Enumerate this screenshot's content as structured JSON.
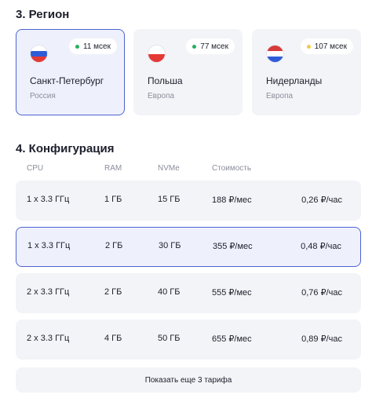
{
  "region": {
    "title": "3. Регион",
    "items": [
      {
        "city": "Санкт-Петербург",
        "area": "Россия",
        "ping": "11 мсек",
        "ping_color": "#27ae60",
        "flag": [
          "#ffffff",
          "#2f5cd6",
          "#e53935"
        ],
        "selected": true
      },
      {
        "city": "Польша",
        "area": "Европа",
        "ping": "77 мсек",
        "ping_color": "#27ae60",
        "flag": [
          "#ffffff",
          "#e53935"
        ],
        "selected": false
      },
      {
        "city": "Нидерланды",
        "area": "Европа",
        "ping": "107 мсек",
        "ping_color": "#f2c94c",
        "flag": [
          "#d63a3a",
          "#ffffff",
          "#2f5cd6"
        ],
        "selected": false
      }
    ]
  },
  "config": {
    "title": "4. Конфигурация",
    "headers": {
      "cpu": "CPU",
      "ram": "RAM",
      "nvme": "NVMe",
      "cost": "Стоимость"
    },
    "rows": [
      {
        "cpu": "1 x 3.3 ГГц",
        "ram": "1 ГБ",
        "nvme": "15 ГБ",
        "cost": "188 ₽/мес",
        "hour": "0,26 ₽/час",
        "selected": false
      },
      {
        "cpu": "1 x 3.3 ГГц",
        "ram": "2 ГБ",
        "nvme": "30 ГБ",
        "cost": "355 ₽/мес",
        "hour": "0,48 ₽/час",
        "selected": true
      },
      {
        "cpu": "2 x 3.3 ГГц",
        "ram": "2 ГБ",
        "nvme": "40 ГБ",
        "cost": "555 ₽/мес",
        "hour": "0,76 ₽/час",
        "selected": false
      },
      {
        "cpu": "2 x 3.3 ГГц",
        "ram": "4 ГБ",
        "nvme": "50 ГБ",
        "cost": "655 ₽/мес",
        "hour": "0,89 ₽/час",
        "selected": false
      }
    ],
    "show_more": "Показать еще 3 тарифа"
  },
  "colors": {
    "accent": "#4f63d2",
    "card_bg": "#f3f4f7",
    "selected_bg": "#eef1fb"
  }
}
